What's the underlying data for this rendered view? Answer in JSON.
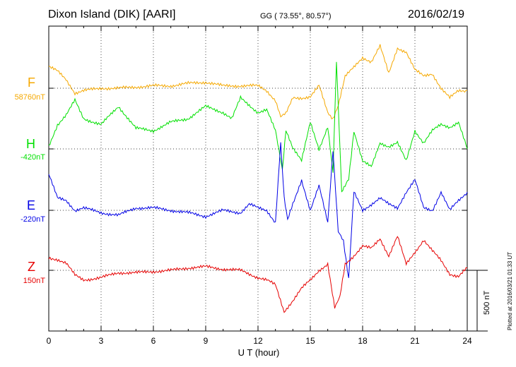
{
  "header": {
    "station": "Dixon Island (DIK)  [AARI]",
    "coords": "GG ( 73.55°,  80.57°)",
    "date": "2016/02/19"
  },
  "side_note": "Plotted at 2016/03/21 01:33 UT",
  "colors": {
    "F": "#f5a800",
    "H": "#00e000",
    "E": "#0000e6",
    "Z": "#e60000"
  },
  "chart_data": {
    "type": "line",
    "title": "Dixon Island (DIK)  [AARI]",
    "xlabel": "U T (hour)",
    "ylabel": "",
    "xlim": [
      0,
      24
    ],
    "x_ticks": [
      "0",
      "3",
      "6",
      "9",
      "12",
      "15",
      "18",
      "21",
      "24"
    ],
    "scale_bar": {
      "label": "500 nT",
      "value_nT": 500
    },
    "grid": true,
    "series": [
      {
        "name": "F",
        "baseline_label": "58760nT",
        "color": "#f5a800",
        "x": [
          0,
          0.5,
          1,
          1.5,
          2,
          3,
          4,
          5,
          6,
          7,
          8,
          9,
          10,
          11,
          12,
          12.5,
          13,
          13.3,
          13.6,
          14,
          14.5,
          15,
          15.5,
          16,
          16.3,
          16.6,
          17,
          17.5,
          18,
          18.5,
          19,
          19.5,
          20,
          20.5,
          21,
          21.5,
          22,
          22.5,
          23,
          23.5,
          24
        ],
        "values": [
          180,
          140,
          70,
          -40,
          -20,
          0,
          0,
          10,
          20,
          20,
          40,
          50,
          20,
          20,
          20,
          -20,
          -100,
          -240,
          -200,
          -80,
          -80,
          -70,
          20,
          -200,
          -250,
          -150,
          100,
          170,
          250,
          220,
          350,
          120,
          330,
          300,
          150,
          100,
          120,
          0,
          -80,
          -20,
          -20
        ]
      },
      {
        "name": "H",
        "baseline_label": "-420nT",
        "color": "#00e000",
        "x": [
          0,
          0.5,
          1,
          1.5,
          2,
          3,
          4,
          5,
          6,
          7,
          8,
          9,
          10,
          10.5,
          11,
          12,
          12.5,
          13,
          13.4,
          13.6,
          14,
          14.5,
          15,
          15.5,
          16,
          16.3,
          16.5,
          16.8,
          17.2,
          17.5,
          18,
          18.5,
          19,
          19.5,
          20,
          20.5,
          21,
          21.5,
          22,
          22.5,
          23,
          23.5,
          24
        ],
        "values": [
          20,
          200,
          280,
          400,
          250,
          200,
          350,
          170,
          150,
          220,
          250,
          350,
          300,
          250,
          420,
          300,
          320,
          150,
          -180,
          150,
          10,
          -100,
          220,
          0,
          180,
          -200,
          720,
          -350,
          -250,
          150,
          -100,
          -150,
          50,
          20,
          50,
          -100,
          150,
          50,
          150,
          200,
          180,
          220,
          0
        ]
      },
      {
        "name": "E",
        "baseline_label": "-220nT",
        "color": "#0000e6",
        "x": [
          0,
          0.5,
          1,
          1.5,
          2,
          3,
          4,
          5,
          6,
          7,
          8,
          9,
          10,
          11,
          11.5,
          12,
          12.5,
          13,
          13.3,
          13.5,
          13.7,
          14,
          14.5,
          15,
          15.5,
          16,
          16.3,
          16.6,
          16.9,
          17.2,
          17.5,
          18,
          18.5,
          19,
          19.5,
          20,
          20.5,
          21,
          21.5,
          22,
          22.5,
          23,
          23.5,
          24
        ],
        "values": [
          300,
          100,
          80,
          0,
          20,
          -20,
          -40,
          20,
          20,
          0,
          -20,
          -50,
          0,
          -20,
          50,
          20,
          0,
          -100,
          550,
          100,
          -80,
          50,
          250,
          0,
          200,
          -100,
          500,
          -180,
          -250,
          -560,
          150,
          0,
          50,
          100,
          50,
          20,
          150,
          250,
          20,
          0,
          150,
          0,
          80,
          150
        ]
      },
      {
        "name": "Z",
        "baseline_label": "150nT",
        "color": "#e60000",
        "x": [
          0,
          0.5,
          1,
          1.5,
          2,
          3,
          4,
          5,
          6,
          7,
          8,
          9,
          10,
          11,
          12,
          12.5,
          13,
          13.5,
          14,
          14.5,
          15,
          15.5,
          16,
          16.4,
          16.7,
          17,
          17.5,
          18,
          18.5,
          19,
          19.5,
          20,
          20.5,
          21,
          21.5,
          22,
          22.5,
          23,
          23.5,
          24
        ],
        "values": [
          100,
          90,
          60,
          -40,
          -80,
          -60,
          -20,
          -20,
          -10,
          0,
          20,
          30,
          10,
          0,
          -60,
          -80,
          -120,
          -340,
          -250,
          -150,
          -80,
          0,
          50,
          -300,
          -220,
          50,
          120,
          200,
          180,
          260,
          120,
          280,
          50,
          150,
          250,
          160,
          80,
          -30,
          -50,
          20
        ]
      }
    ]
  }
}
